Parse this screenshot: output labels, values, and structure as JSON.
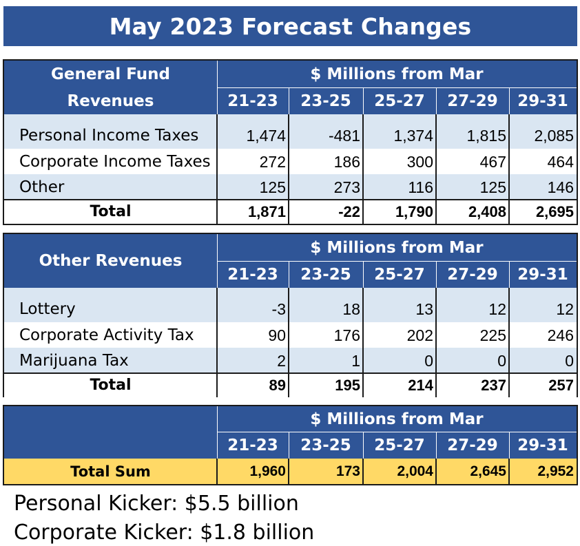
{
  "title": "May 2023 Forecast Changes",
  "periods": [
    "21-23",
    "23-25",
    "25-27",
    "27-29",
    "29-31"
  ],
  "span_label": "$ Millions from Mar",
  "general_fund": {
    "label_line1": "General Fund",
    "label_line2": "Revenues",
    "rows": [
      {
        "label": "Personal Income Taxes",
        "values": [
          "1,474",
          "-481",
          "1,374",
          "1,815",
          "2,085"
        ]
      },
      {
        "label": "Corporate Income Taxes",
        "values": [
          "272",
          "186",
          "300",
          "467",
          "464"
        ]
      },
      {
        "label": "Other",
        "values": [
          "125",
          "273",
          "116",
          "125",
          "146"
        ]
      }
    ],
    "total": {
      "label": "Total",
      "values": [
        "1,871",
        "-22",
        "1,790",
        "2,408",
        "2,695"
      ]
    }
  },
  "other_revenues": {
    "label": "Other Revenues",
    "rows": [
      {
        "label": "Lottery",
        "values": [
          "-3",
          "18",
          "13",
          "12",
          "12"
        ]
      },
      {
        "label": "Corporate Activity Tax",
        "values": [
          "90",
          "176",
          "202",
          "225",
          "246"
        ]
      },
      {
        "label": "Marijuana Tax",
        "values": [
          "2",
          "1",
          "0",
          "0",
          "0"
        ]
      }
    ],
    "total": {
      "label": "Total",
      "values": [
        "89",
        "195",
        "214",
        "237",
        "257"
      ]
    }
  },
  "sum": {
    "label": "Total Sum",
    "values": [
      "1,960",
      "173",
      "2,004",
      "2,645",
      "2,952"
    ]
  },
  "kickers": {
    "personal": "Personal Kicker: $5.5 billion",
    "corporate": "Corporate Kicker: $1.8 billion"
  }
}
